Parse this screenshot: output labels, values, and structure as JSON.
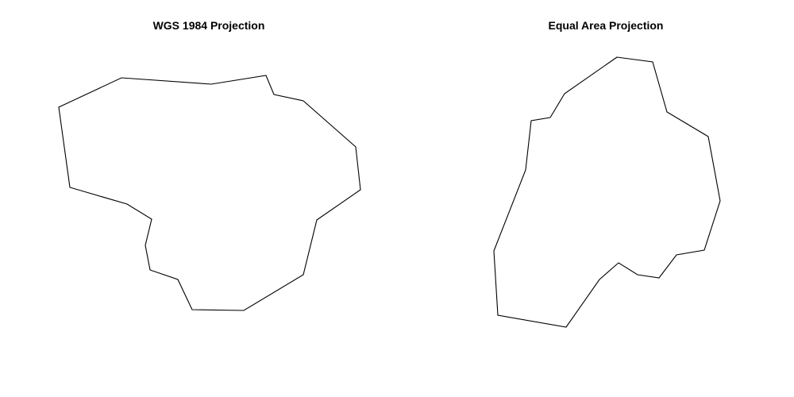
{
  "panels": [
    {
      "title": "WGS 1984 Projection"
    },
    {
      "title": "Equal Area Projection"
    }
  ],
  "colors": {
    "background": "#ffffff",
    "outline": "#000000"
  }
}
